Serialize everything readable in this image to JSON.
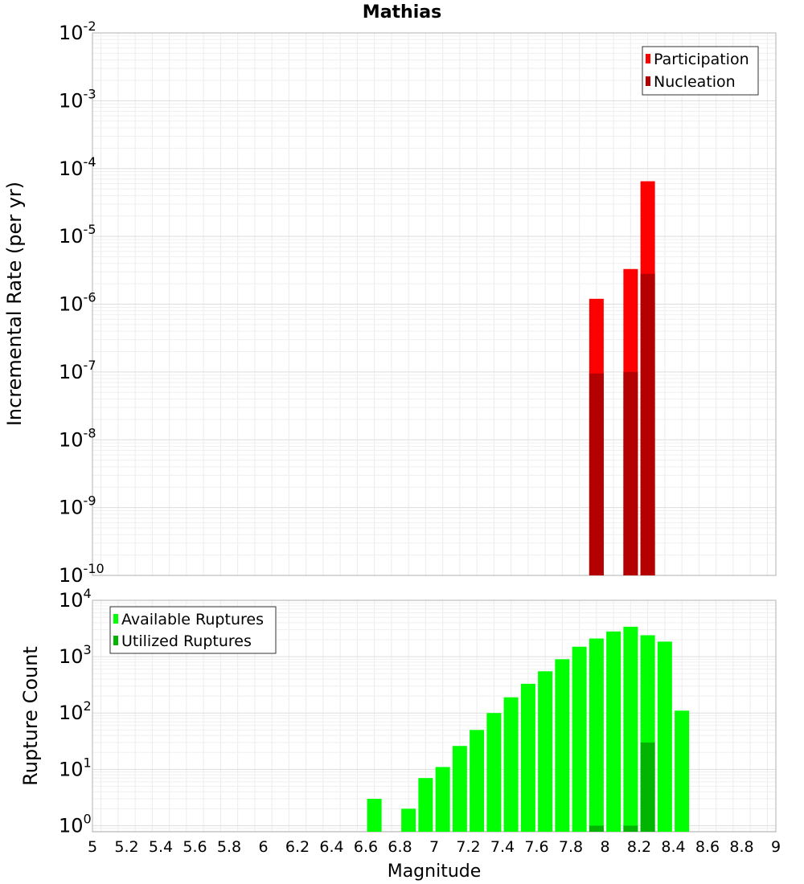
{
  "chart_data": [
    {
      "type": "bar",
      "title": "Mathias",
      "ylabel": "Incremental Rate (per yr)",
      "y_scale": "log",
      "ylim": [
        1e-10,
        0.01
      ],
      "xlim": [
        5,
        9
      ],
      "y_tick_labels": [
        {
          "base": "10",
          "exp": "-10"
        },
        {
          "base": "10",
          "exp": "-9"
        },
        {
          "base": "10",
          "exp": "-8"
        },
        {
          "base": "10",
          "exp": "-7"
        },
        {
          "base": "10",
          "exp": "-6"
        },
        {
          "base": "10",
          "exp": "-5"
        },
        {
          "base": "10",
          "exp": "-4"
        },
        {
          "base": "10",
          "exp": "-3"
        },
        {
          "base": "10",
          "exp": "-2"
        }
      ],
      "y_tick_values": [
        1e-10,
        1e-09,
        1e-08,
        1e-07,
        1e-06,
        1e-05,
        0.0001,
        0.001,
        0.01
      ],
      "legend_position": "top-right",
      "grid": true,
      "series": [
        {
          "name": "Participation",
          "color": "#ff0000",
          "points": [
            {
              "x": 7.95,
              "y": 1.2e-06
            },
            {
              "x": 8.15,
              "y": 3.3e-06
            },
            {
              "x": 8.25,
              "y": 6.5e-05
            }
          ]
        },
        {
          "name": "Nucleation",
          "color": "#b40000",
          "points": [
            {
              "x": 7.95,
              "y": 9.5e-08
            },
            {
              "x": 8.15,
              "y": 1e-07
            },
            {
              "x": 8.25,
              "y": 2.8e-06
            }
          ]
        }
      ]
    },
    {
      "type": "bar",
      "title": "",
      "ylabel": "Rupture Count",
      "xlabel": "Magnitude",
      "y_scale": "log",
      "ylim": [
        0.78,
        10000
      ],
      "xlim": [
        5,
        9
      ],
      "x_ticks": [
        "5",
        "5.2",
        "5.4",
        "5.6",
        "5.8",
        "6",
        "6.2",
        "6.4",
        "6.6",
        "6.8",
        "7",
        "7.2",
        "7.4",
        "7.6",
        "7.8",
        "8",
        "8.2",
        "8.4",
        "8.6",
        "8.8",
        "9"
      ],
      "y_tick_labels": [
        {
          "base": "10",
          "exp": "0"
        },
        {
          "base": "10",
          "exp": "1"
        },
        {
          "base": "10",
          "exp": "2"
        },
        {
          "base": "10",
          "exp": "3"
        },
        {
          "base": "10",
          "exp": "4"
        }
      ],
      "y_tick_values": [
        1,
        10,
        100,
        1000,
        10000
      ],
      "legend_position": "top-left",
      "grid": true,
      "series": [
        {
          "name": "Available Ruptures",
          "color": "#00ff00",
          "points": [
            {
              "x": 6.65,
              "y": 3
            },
            {
              "x": 6.85,
              "y": 2
            },
            {
              "x": 6.95,
              "y": 7
            },
            {
              "x": 7.05,
              "y": 11
            },
            {
              "x": 7.15,
              "y": 26
            },
            {
              "x": 7.25,
              "y": 50
            },
            {
              "x": 7.35,
              "y": 100
            },
            {
              "x": 7.45,
              "y": 190
            },
            {
              "x": 7.55,
              "y": 330
            },
            {
              "x": 7.65,
              "y": 550
            },
            {
              "x": 7.75,
              "y": 900
            },
            {
              "x": 7.85,
              "y": 1500
            },
            {
              "x": 7.95,
              "y": 2100
            },
            {
              "x": 8.05,
              "y": 2800
            },
            {
              "x": 8.15,
              "y": 3400
            },
            {
              "x": 8.25,
              "y": 2400
            },
            {
              "x": 8.35,
              "y": 1850
            },
            {
              "x": 8.45,
              "y": 110
            }
          ]
        },
        {
          "name": "Utilized Ruptures",
          "color": "#00b400",
          "points": [
            {
              "x": 7.95,
              "y": 1
            },
            {
              "x": 8.15,
              "y": 1
            },
            {
              "x": 8.25,
              "y": 30
            }
          ]
        }
      ]
    }
  ]
}
